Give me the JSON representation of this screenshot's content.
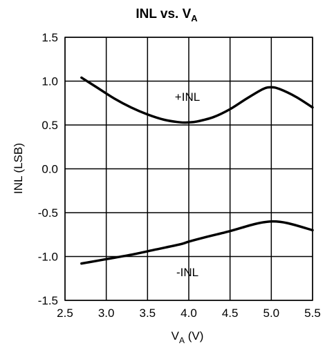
{
  "chart_data": {
    "type": "line",
    "title": {
      "main": "INL vs. V",
      "sub": "A"
    },
    "xlabel": {
      "main": "V",
      "sub": "A",
      "unit": " (V)"
    },
    "ylabel": "INL (LSB)",
    "xlim": [
      2.5,
      5.5
    ],
    "ylim": [
      -1.5,
      1.5
    ],
    "x_ticks": [
      "2.5",
      "3.0",
      "3.5",
      "4.0",
      "4.5",
      "5.0",
      "5.5"
    ],
    "y_ticks": [
      "1.5",
      "1.0",
      "0.5",
      "0.0",
      "-0.5",
      "-1.0",
      "-1.5"
    ],
    "grid": true,
    "series": [
      {
        "name": "+INL",
        "x": [
          2.7,
          2.9,
          3.1,
          3.3,
          3.5,
          3.7,
          3.9,
          4.0,
          4.1,
          4.3,
          4.5,
          4.7,
          4.9,
          5.0,
          5.1,
          5.3,
          5.5
        ],
        "y": [
          1.04,
          0.92,
          0.8,
          0.7,
          0.62,
          0.56,
          0.53,
          0.53,
          0.54,
          0.59,
          0.68,
          0.8,
          0.91,
          0.93,
          0.91,
          0.82,
          0.7
        ]
      },
      {
        "name": "-INL",
        "x": [
          2.7,
          3.0,
          3.3,
          3.6,
          3.9,
          4.0,
          4.2,
          4.5,
          4.8,
          5.0,
          5.2,
          5.5
        ],
        "y": [
          -1.08,
          -1.03,
          -0.98,
          -0.92,
          -0.86,
          -0.83,
          -0.78,
          -0.71,
          -0.63,
          -0.6,
          -0.62,
          -0.7
        ]
      }
    ]
  }
}
